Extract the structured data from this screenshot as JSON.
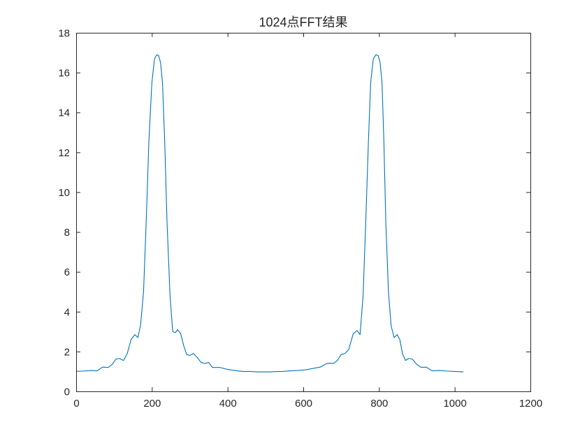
{
  "chart_data": {
    "type": "line",
    "title": "1024点FFT结果",
    "xlabel": "",
    "ylabel": "",
    "xlim": [
      0,
      1200
    ],
    "ylim": [
      0,
      18
    ],
    "x_ticks": [
      0,
      200,
      400,
      600,
      800,
      1000,
      1200
    ],
    "y_ticks": [
      0,
      2,
      4,
      6,
      8,
      10,
      12,
      14,
      16,
      18
    ],
    "grid": false,
    "legend": "none",
    "series_color": "#0072BD",
    "series": [
      {
        "x": [
          0,
          20,
          40,
          55,
          70,
          85,
          95,
          105,
          115,
          125,
          135,
          145,
          155,
          163,
          170,
          178,
          185,
          192,
          200,
          207,
          213,
          218,
          223,
          228,
          234,
          240,
          248,
          255,
          262,
          268,
          276,
          284,
          292,
          300,
          310,
          320,
          330,
          340,
          350,
          360,
          380,
          400,
          420,
          440,
          460,
          480,
          500,
          512,
          525,
          545,
          565,
          585,
          605,
          625,
          645,
          660,
          670,
          680,
          690,
          700,
          710,
          720,
          732,
          742,
          750,
          758,
          765,
          772,
          778,
          785,
          792,
          798,
          803,
          808,
          813,
          818,
          825,
          832,
          840,
          848,
          855,
          862,
          870,
          878,
          888,
          900,
          912,
          925,
          940,
          960,
          980,
          1000,
          1023
        ],
        "values": [
          1.0,
          1.02,
          1.05,
          1.03,
          1.22,
          1.2,
          1.35,
          1.62,
          1.65,
          1.55,
          1.9,
          2.6,
          2.85,
          2.7,
          3.3,
          5.0,
          8.5,
          12.5,
          15.5,
          16.7,
          16.9,
          16.85,
          16.5,
          15.5,
          12.5,
          8.5,
          4.8,
          3.0,
          2.95,
          3.1,
          2.9,
          2.3,
          1.85,
          1.8,
          1.9,
          1.7,
          1.45,
          1.4,
          1.45,
          1.2,
          1.2,
          1.1,
          1.05,
          1.0,
          1.0,
          0.98,
          0.98,
          0.98,
          0.99,
          1.0,
          1.03,
          1.05,
          1.08,
          1.15,
          1.22,
          1.38,
          1.42,
          1.4,
          1.55,
          1.85,
          1.9,
          2.1,
          2.9,
          3.05,
          2.85,
          4.8,
          8.5,
          12.5,
          15.5,
          16.7,
          16.9,
          16.85,
          16.5,
          15.5,
          12.5,
          8.5,
          5.0,
          3.3,
          2.7,
          2.85,
          2.6,
          1.9,
          1.55,
          1.65,
          1.62,
          1.35,
          1.2,
          1.22,
          1.03,
          1.05,
          1.02,
          1.0,
          0.98
        ]
      }
    ]
  }
}
